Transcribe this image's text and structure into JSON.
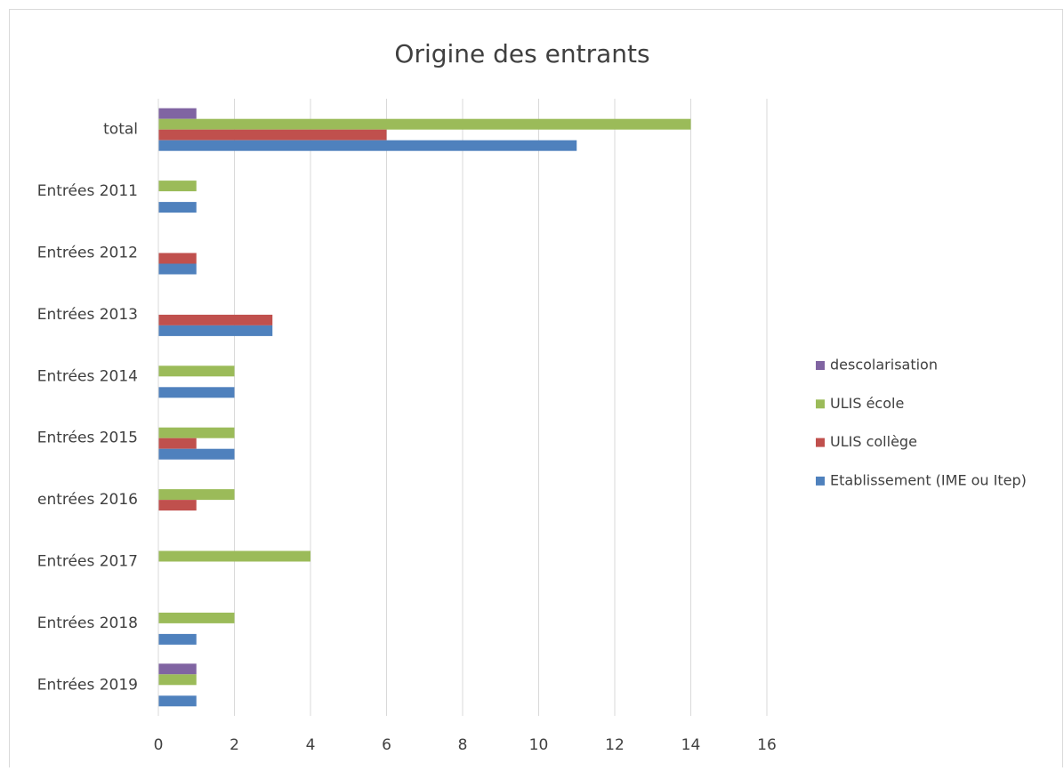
{
  "chart_data": {
    "type": "hbar",
    "title": "Origine des entrants",
    "categories": [
      "total",
      "Entrées 2011",
      "Entrées 2012",
      "Entrées 2013",
      "Entrées 2014",
      "Entrées 2015",
      "entrées 2016",
      "Entrées 2017",
      "Entrées 2018",
      "Entrées 2019"
    ],
    "series": [
      {
        "name": "descolarisation",
        "color": "#8064a2",
        "values": [
          1,
          null,
          null,
          null,
          null,
          null,
          null,
          null,
          null,
          1
        ]
      },
      {
        "name": "ULIS école",
        "color": "#9bbb59",
        "values": [
          14,
          1,
          null,
          null,
          2,
          2,
          2,
          4,
          2,
          1
        ]
      },
      {
        "name": "ULIS collège",
        "color": "#c0504d",
        "values": [
          6,
          null,
          1,
          3,
          null,
          1,
          1,
          null,
          null,
          null
        ]
      },
      {
        "name": "Etablissement (IME ou Itep)",
        "color": "#4f81bd",
        "values": [
          11,
          1,
          1,
          3,
          2,
          2,
          null,
          null,
          1,
          1
        ]
      }
    ],
    "xlim": [
      0,
      16
    ],
    "xticks": [
      0,
      2,
      4,
      6,
      8,
      10,
      12,
      14,
      16
    ],
    "grid": true,
    "legend": "right"
  }
}
